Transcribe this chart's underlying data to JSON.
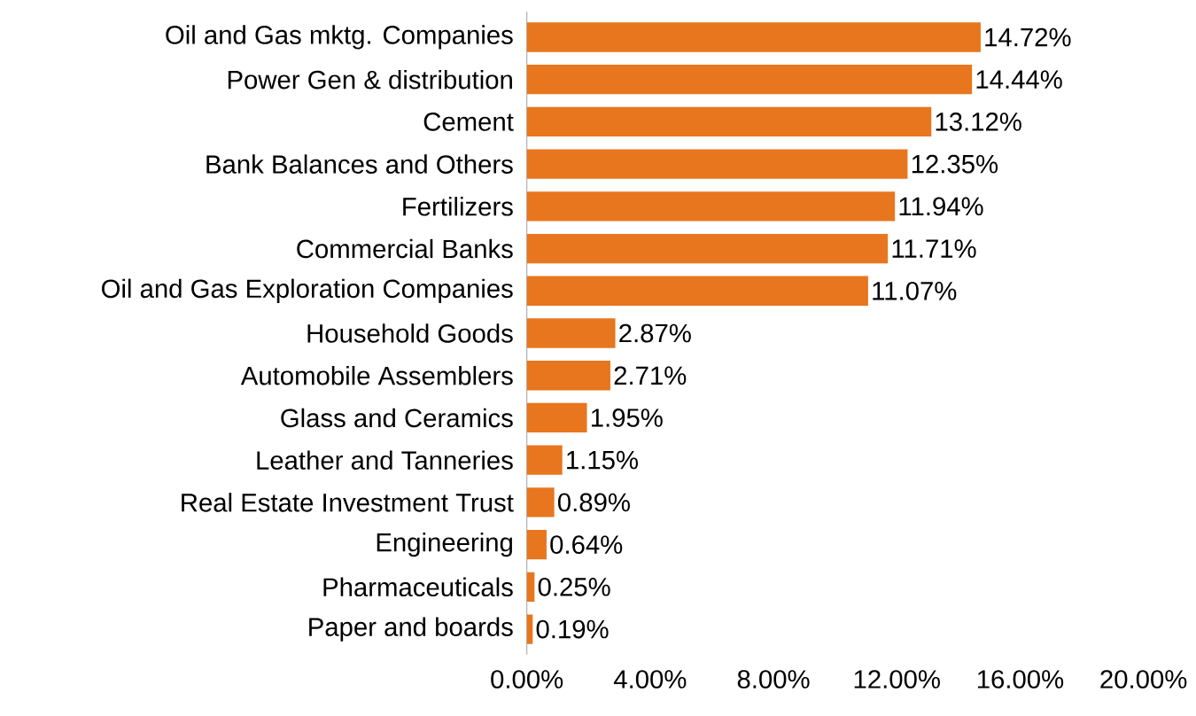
{
  "chart_data": {
    "type": "bar",
    "orientation": "horizontal",
    "categories": [
      "Oil and Gas mktg. Companies",
      "Power Gen & distribution",
      "Cement",
      "Bank Balances and Others",
      "Fertilizers",
      "Commercial Banks",
      "Oil and Gas Exploration Companies",
      "Household Goods",
      "Automobile Assemblers",
      "Glass and Ceramics",
      "Leather and Tanneries",
      "Real Estate Investment Trust",
      "Engineering",
      "Pharmaceuticals",
      "Paper and boards"
    ],
    "values": [
      14.72,
      14.44,
      13.12,
      12.35,
      11.94,
      11.71,
      11.07,
      2.87,
      2.71,
      1.95,
      1.15,
      0.89,
      0.64,
      0.25,
      0.19
    ],
    "value_labels": [
      "14.72%",
      "14.44%",
      "13.12%",
      "12.35%",
      "11.94%",
      "11.71%",
      "11.07%",
      "2.87%",
      "2.71%",
      "1.95%",
      "1.15%",
      "0.89%",
      "0.64%",
      "0.25%",
      "0.19%"
    ],
    "color": "#e8761e",
    "xlim": [
      0,
      20
    ],
    "xticks": [
      {
        "value": 0,
        "label": "0.00%"
      },
      {
        "value": 4,
        "label": "4.00%"
      },
      {
        "value": 8,
        "label": "8.00%"
      },
      {
        "value": 12,
        "label": "12.00%"
      },
      {
        "value": 16,
        "label": "16.00%"
      },
      {
        "value": 20,
        "label": "20.00%"
      }
    ]
  }
}
